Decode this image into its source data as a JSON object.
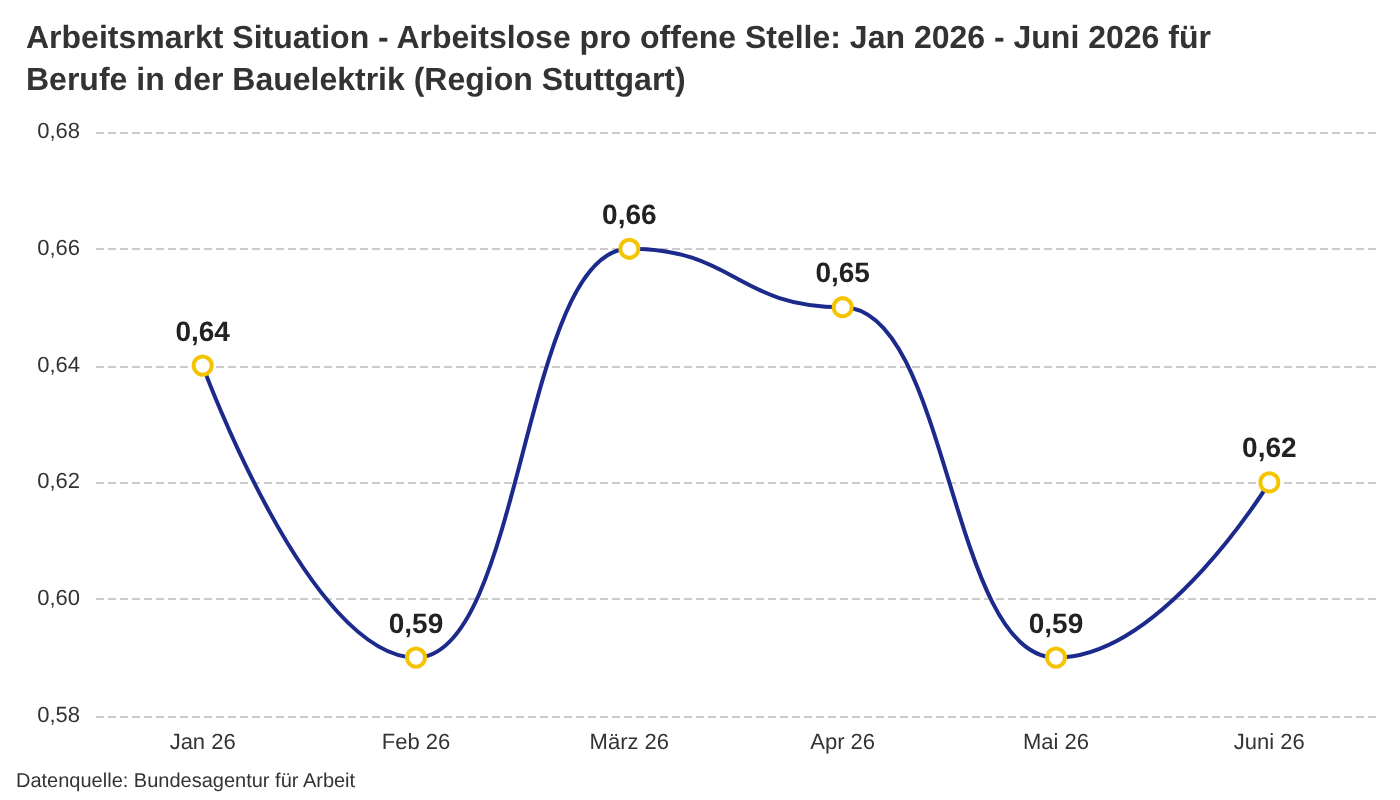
{
  "chart_data": {
    "type": "line",
    "title": "Arbeitsmarkt Situation - Arbeitslose pro offene Stelle: Jan 2026 - Juni 2026 für\nBerufe in der Bauelektrik (Region Stuttgart)",
    "categories": [
      "Jan 26",
      "Feb 26",
      "März 26",
      "Apr 26",
      "Mai 26",
      "Juni 26"
    ],
    "series": [
      {
        "color": "#1c2a8c",
        "colors": [
          "#f5c400",
          "#f5c400",
          "#f5c400",
          "#f5c400",
          "#f5c400",
          "#f5c400"
        ],
        "values": [
          0.64,
          0.59,
          0.66,
          0.65,
          0.59,
          0.62
        ],
        "value_labels": [
          "0,64",
          "0,59",
          "0,66",
          "0,65",
          "0,59",
          "0,62"
        ]
      }
    ],
    "ylim": [
      0.58,
      0.68
    ],
    "yticks": [
      {
        "value": 0.58,
        "label": "0,58"
      },
      {
        "value": 0.6,
        "label": "0,60"
      },
      {
        "value": 0.62,
        "label": "0,62"
      },
      {
        "value": 0.64,
        "label": "0,64"
      },
      {
        "value": 0.66,
        "label": "0,66"
      },
      {
        "value": 0.68,
        "label": "0,68"
      }
    ],
    "grid": "y",
    "marker": "circle",
    "line_style": "solid",
    "annotations": [
      "Datenquelle: Bundesagentur für Arbeit"
    ]
  }
}
